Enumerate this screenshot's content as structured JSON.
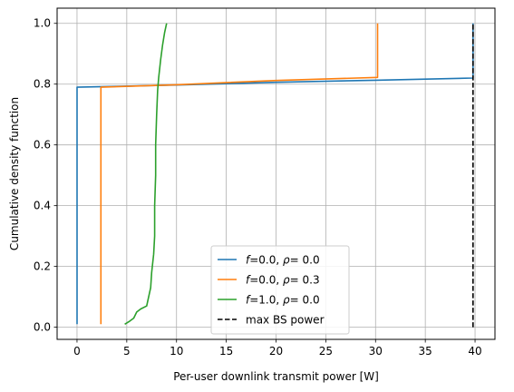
{
  "chart_data": {
    "type": "line",
    "title": "",
    "xlabel": "Per-user downlink transmit power [W]",
    "ylabel": "Cumulative density function",
    "xlim": [
      -2,
      42
    ],
    "ylim": [
      -0.04,
      1.05
    ],
    "xticks": [
      0,
      5,
      10,
      15,
      20,
      25,
      30,
      35,
      40
    ],
    "yticks": [
      0.0,
      0.2,
      0.4,
      0.6,
      0.8,
      1.0
    ],
    "xtick_labels": [
      "0",
      "5",
      "10",
      "15",
      "20",
      "25",
      "30",
      "35",
      "40"
    ],
    "ytick_labels": [
      "0.0",
      "0.2",
      "0.4",
      "0.6",
      "0.8",
      "1.0"
    ],
    "grid": true,
    "legend_position": "lower-center",
    "series": [
      {
        "legend": {
          "f_symbol": "f",
          "f_value": "=0.0, ",
          "rho_symbol": "ρ",
          "rho_value": "= 0.0"
        },
        "color": "#1f77b4",
        "style": "solid",
        "points": [
          [
            0.0,
            0.01
          ],
          [
            0.0,
            0.79
          ],
          [
            10.0,
            0.797
          ],
          [
            20.0,
            0.806
          ],
          [
            30.0,
            0.813
          ],
          [
            39.8,
            0.82
          ],
          [
            39.8,
            1.0
          ]
        ]
      },
      {
        "legend": {
          "f_symbol": "f",
          "f_value": "=0.0, ",
          "rho_symbol": "ρ",
          "rho_value": "= 0.3"
        },
        "color": "#ff7f0e",
        "style": "solid",
        "points": [
          [
            2.4,
            0.01
          ],
          [
            2.4,
            0.79
          ],
          [
            10.0,
            0.798
          ],
          [
            20.0,
            0.812
          ],
          [
            30.2,
            0.822
          ],
          [
            30.2,
            1.0
          ]
        ]
      },
      {
        "legend": {
          "f_symbol": "f",
          "f_value": "=1.0, ",
          "rho_symbol": "ρ",
          "rho_value": "= 0.0"
        },
        "color": "#2ca02c",
        "style": "solid",
        "points": [
          [
            4.8,
            0.01
          ],
          [
            5.3,
            0.02
          ],
          [
            5.7,
            0.03
          ],
          [
            6.0,
            0.05
          ],
          [
            6.4,
            0.06
          ],
          [
            7.0,
            0.07
          ],
          [
            7.2,
            0.1
          ],
          [
            7.4,
            0.13
          ],
          [
            7.5,
            0.18
          ],
          [
            7.7,
            0.24
          ],
          [
            7.8,
            0.3
          ],
          [
            7.8,
            0.4
          ],
          [
            7.9,
            0.5
          ],
          [
            7.9,
            0.6
          ],
          [
            8.0,
            0.7
          ],
          [
            8.1,
            0.78
          ],
          [
            8.2,
            0.82
          ],
          [
            8.4,
            0.88
          ],
          [
            8.6,
            0.93
          ],
          [
            8.8,
            0.97
          ],
          [
            9.0,
            1.0
          ]
        ]
      },
      {
        "legend": {
          "text": "max BS power"
        },
        "color": "#000000",
        "style": "dashed",
        "points": [
          [
            39.8,
            0.0
          ],
          [
            39.8,
            1.0
          ]
        ]
      }
    ]
  }
}
